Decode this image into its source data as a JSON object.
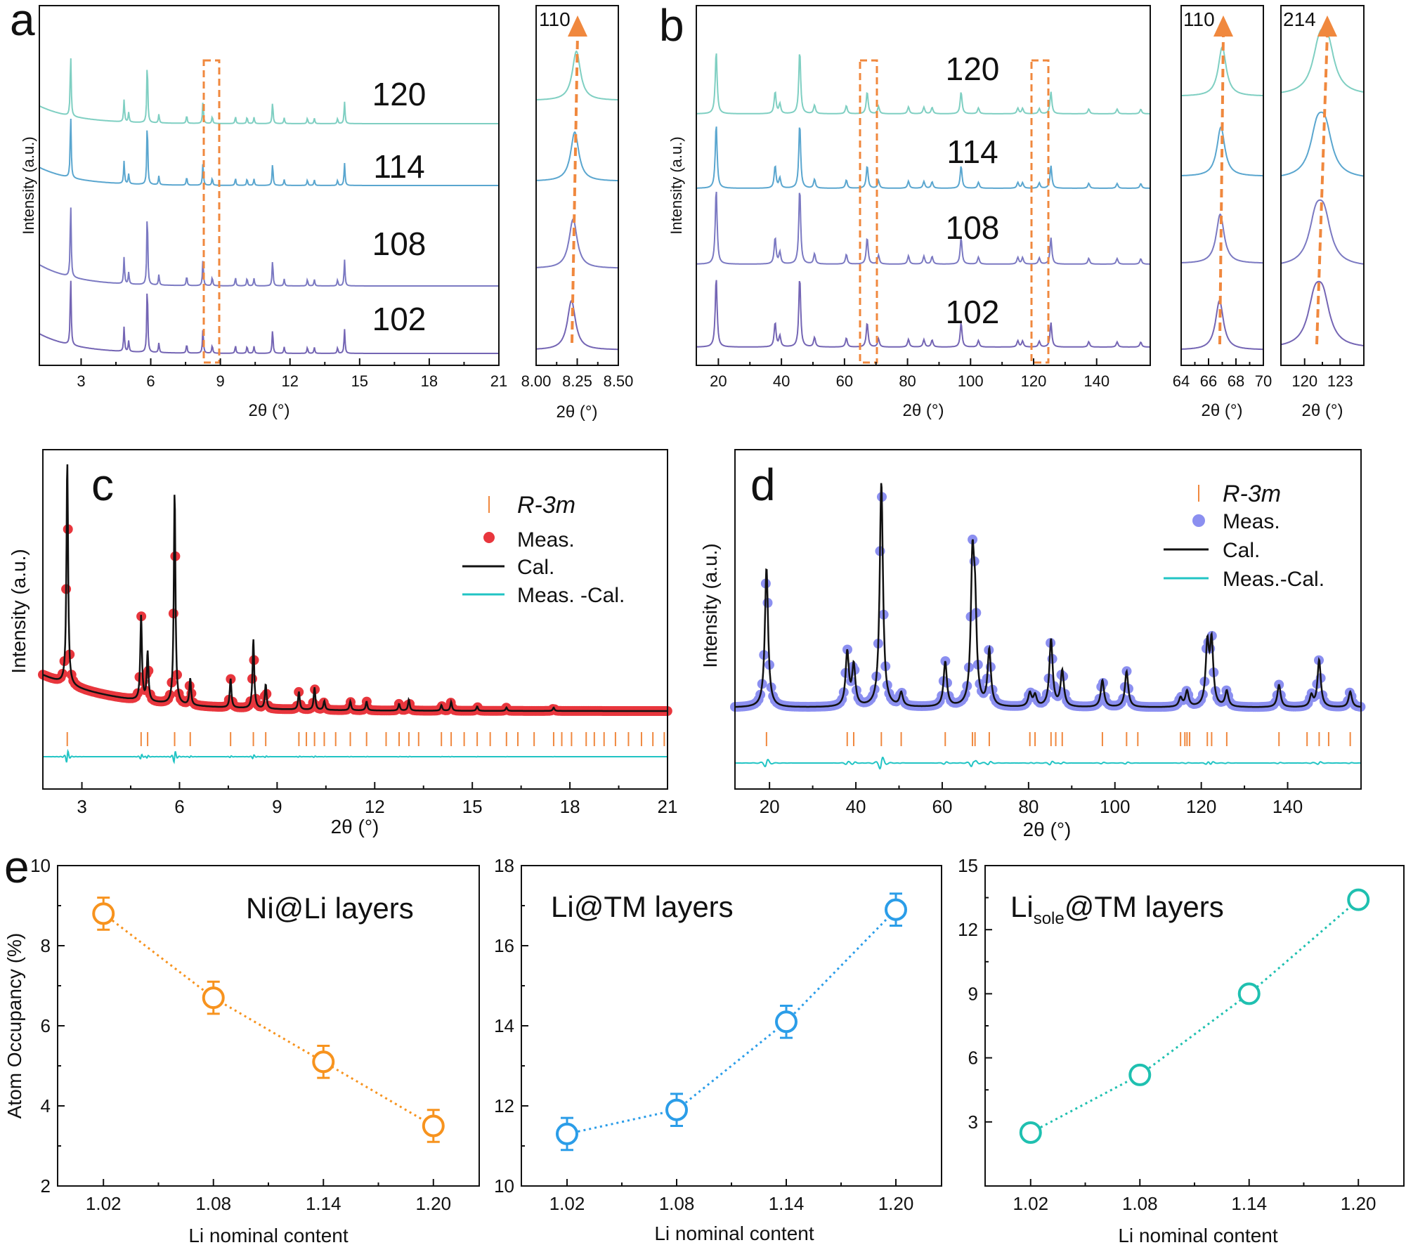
{
  "figure": {
    "panel_labels": {
      "a": "a",
      "b": "b",
      "c": "c",
      "d": "d",
      "e": "e"
    },
    "colors": {
      "s120": "#7fcfc2",
      "s114": "#5aa6cf",
      "s108": "#7b79c2",
      "s102": "#7465b4",
      "orange": "#f0883e",
      "red": "#e8363d",
      "blue_meas": "#8b8ff0",
      "cyan": "#21c4c4",
      "occ_orange": "#f7931e",
      "occ_blue": "#2b9de8",
      "occ_cyan": "#1fc0b0"
    }
  },
  "chart_data": [
    {
      "id": "a-main",
      "type": "line",
      "xlabel": "2θ (°)",
      "ylabel": "Intensity (a.u.)",
      "xlim": [
        1.2,
        21
      ],
      "xticks": [
        3,
        6,
        9,
        12,
        15,
        18,
        21
      ],
      "xtick_labels": [
        "3",
        "6",
        "9",
        "12",
        "15",
        "18",
        "21"
      ],
      "series_labels": [
        "120",
        "114",
        "108",
        "102"
      ],
      "peak_positions": [
        2.55,
        4.85,
        5.05,
        5.85,
        6.35,
        7.55,
        8.25,
        8.65,
        9.65,
        10.15,
        10.45,
        11.25,
        11.75,
        12.75,
        13.05,
        14.05,
        14.35
      ]
    },
    {
      "id": "a-inset",
      "type": "line",
      "xlabel": "2θ (°)",
      "xlim": [
        8.0,
        8.5
      ],
      "xtick_labels": [
        "8.00",
        "8.25",
        "8.50"
      ],
      "xticks": [
        8.0,
        8.25,
        8.5
      ],
      "annotation": "110",
      "peak_centers": [
        8.245,
        8.235,
        8.225,
        8.215
      ]
    },
    {
      "id": "b-main",
      "type": "line",
      "xlabel": "2θ (°)",
      "ylabel": "Intensity (a.u.)",
      "xlim": [
        13,
        157
      ],
      "xticks": [
        20,
        40,
        60,
        80,
        100,
        120,
        140
      ],
      "xtick_labels": [
        "20",
        "40",
        "60",
        "80",
        "100",
        "120",
        "140"
      ],
      "series_labels": [
        "120",
        "114",
        "108",
        "102"
      ],
      "peak_positions": [
        19.3,
        38.0,
        39.5,
        45.8,
        50.5,
        60.6,
        67.2,
        70.8,
        80.3,
        85.2,
        87.8,
        97.0,
        102.5,
        115.0,
        116.5,
        121.8,
        125.5,
        137.5,
        146.5,
        154.0
      ]
    },
    {
      "id": "b-inset-110",
      "type": "line",
      "xlabel": "2θ (°)",
      "xlim": [
        64,
        70
      ],
      "xticks": [
        64,
        66,
        68,
        70
      ],
      "xtick_labels": [
        "64",
        "66",
        "68",
        "70"
      ],
      "annotation": "110",
      "peak_centers": [
        67.0,
        66.9,
        66.85,
        66.8
      ]
    },
    {
      "id": "b-inset-214",
      "type": "line",
      "xlabel": "2θ (°)",
      "xlim": [
        118,
        125
      ],
      "xticks": [
        120,
        123
      ],
      "xtick_labels": [
        "120",
        "123"
      ],
      "annotation": "214",
      "peak_centers": [
        121.6,
        121.4,
        121.3,
        121.2
      ]
    },
    {
      "id": "c",
      "type": "scatter",
      "xlabel": "2θ (°)",
      "ylabel": "Intensity (a.u.)",
      "xlim": [
        1.8,
        21
      ],
      "xticks": [
        3,
        6,
        9,
        12,
        15,
        18,
        21
      ],
      "xtick_labels": [
        "3",
        "6",
        "9",
        "12",
        "15",
        "18",
        "21"
      ],
      "legend": [
        "R-3m",
        "Meas.",
        "Cal.",
        "Meas. -Cal."
      ],
      "peaks": [
        {
          "x": 2.55,
          "h": 1.0
        },
        {
          "x": 4.82,
          "h": 0.38
        },
        {
          "x": 5.02,
          "h": 0.22
        },
        {
          "x": 5.85,
          "h": 0.95
        },
        {
          "x": 6.33,
          "h": 0.12
        },
        {
          "x": 7.57,
          "h": 0.13
        },
        {
          "x": 8.27,
          "h": 0.31
        },
        {
          "x": 8.65,
          "h": 0.11
        },
        {
          "x": 9.67,
          "h": 0.08
        },
        {
          "x": 10.15,
          "h": 0.1
        },
        {
          "x": 10.45,
          "h": 0.04
        },
        {
          "x": 11.25,
          "h": 0.04
        },
        {
          "x": 11.75,
          "h": 0.04
        },
        {
          "x": 12.75,
          "h": 0.03
        },
        {
          "x": 13.05,
          "h": 0.05
        },
        {
          "x": 14.05,
          "h": 0.025
        },
        {
          "x": 14.35,
          "h": 0.04
        },
        {
          "x": 15.15,
          "h": 0.02
        },
        {
          "x": 16.05,
          "h": 0.015
        },
        {
          "x": 17.5,
          "h": 0.015
        }
      ],
      "bragg_ticks": [
        2.55,
        4.82,
        5.02,
        5.85,
        6.33,
        7.57,
        8.27,
        8.65,
        9.67,
        9.9,
        10.15,
        10.45,
        10.8,
        11.25,
        11.75,
        12.35,
        12.75,
        13.05,
        13.35,
        14.05,
        14.35,
        14.75,
        15.15,
        15.55,
        16.05,
        16.4,
        16.9,
        17.5,
        17.75,
        18.05,
        18.5,
        18.75,
        19.05,
        19.4,
        19.8,
        20.2,
        20.55,
        20.9
      ]
    },
    {
      "id": "d",
      "type": "scatter",
      "xlabel": "2θ (°)",
      "ylabel": "Intensity (a.u.)",
      "xlim": [
        12,
        157
      ],
      "xticks": [
        20,
        40,
        60,
        80,
        100,
        120,
        140
      ],
      "xtick_labels": [
        "20",
        "40",
        "60",
        "80",
        "100",
        "120",
        "140"
      ],
      "legend": [
        "R-3m",
        "Meas.",
        "Cal.",
        "Meas.-Cal."
      ],
      "peaks": [
        {
          "x": 19.3,
          "h": 0.62
        },
        {
          "x": 38.0,
          "h": 0.24
        },
        {
          "x": 39.5,
          "h": 0.18
        },
        {
          "x": 45.9,
          "h": 1.0
        },
        {
          "x": 50.5,
          "h": 0.06
        },
        {
          "x": 60.7,
          "h": 0.2
        },
        {
          "x": 67.0,
          "h": 0.6
        },
        {
          "x": 67.6,
          "h": 0.38
        },
        {
          "x": 70.9,
          "h": 0.25
        },
        {
          "x": 80.3,
          "h": 0.06
        },
        {
          "x": 81.5,
          "h": 0.05
        },
        {
          "x": 85.2,
          "h": 0.3
        },
        {
          "x": 87.8,
          "h": 0.16
        },
        {
          "x": 97.1,
          "h": 0.12
        },
        {
          "x": 102.7,
          "h": 0.16
        },
        {
          "x": 115.2,
          "h": 0.04
        },
        {
          "x": 116.7,
          "h": 0.07
        },
        {
          "x": 121.4,
          "h": 0.27
        },
        {
          "x": 122.4,
          "h": 0.28
        },
        {
          "x": 125.9,
          "h": 0.07
        },
        {
          "x": 138.0,
          "h": 0.1
        },
        {
          "x": 145.5,
          "h": 0.05
        },
        {
          "x": 147.3,
          "h": 0.21
        },
        {
          "x": 154.5,
          "h": 0.07
        }
      ],
      "bragg_ticks": [
        19.3,
        38.0,
        39.5,
        45.9,
        50.5,
        60.7,
        67.0,
        67.6,
        70.9,
        80.3,
        81.5,
        85.2,
        86.3,
        87.8,
        97.1,
        102.7,
        105.3,
        115.2,
        116.2,
        116.7,
        117.3,
        121.4,
        122.4,
        125.9,
        138.0,
        144.5,
        147.3,
        149.5,
        154.5
      ]
    },
    {
      "id": "e1",
      "type": "scatter",
      "title": "Ni@Li layers",
      "xlabel": "Li nominal content",
      "ylabel": "Atom Occupancy (%)",
      "x": [
        1.02,
        1.08,
        1.14,
        1.2
      ],
      "xtick_labels": [
        "1.02",
        "1.08",
        "1.14",
        "1.20"
      ],
      "values": [
        8.8,
        6.7,
        5.1,
        3.5
      ],
      "errors": [
        0.4,
        0.4,
        0.4,
        0.4
      ],
      "ylim": [
        2,
        10
      ],
      "yticks": [
        2,
        4,
        6,
        8,
        10
      ],
      "ytick_labels": [
        "2",
        "4",
        "6",
        "8",
        "10"
      ]
    },
    {
      "id": "e2",
      "type": "scatter",
      "title": "Li@TM layers",
      "xlabel": "Li nominal content",
      "x": [
        1.02,
        1.08,
        1.14,
        1.2
      ],
      "xtick_labels": [
        "1.02",
        "1.08",
        "1.14",
        "1.20"
      ],
      "values": [
        11.3,
        11.9,
        14.1,
        16.9
      ],
      "errors": [
        0.4,
        0.4,
        0.4,
        0.4
      ],
      "ylim": [
        10,
        18
      ],
      "yticks": [
        10,
        12,
        14,
        16,
        18
      ],
      "ytick_labels": [
        "10",
        "12",
        "14",
        "16",
        "18"
      ]
    },
    {
      "id": "e3",
      "type": "scatter",
      "title_main": "Li",
      "title_sub": "sole",
      "title_rest": "@TM layers",
      "xlabel": "Li nominal content",
      "x": [
        1.02,
        1.08,
        1.14,
        1.2
      ],
      "xtick_labels": [
        "1.02",
        "1.08",
        "1.14",
        "1.20"
      ],
      "values": [
        2.5,
        5.2,
        9.0,
        13.4
      ],
      "errors": [
        0,
        0,
        0,
        0
      ],
      "ylim": [
        0,
        15
      ],
      "yticks": [
        3,
        6,
        9,
        12,
        15
      ],
      "ytick_labels": [
        "3",
        "6",
        "9",
        "12",
        "15"
      ]
    }
  ]
}
